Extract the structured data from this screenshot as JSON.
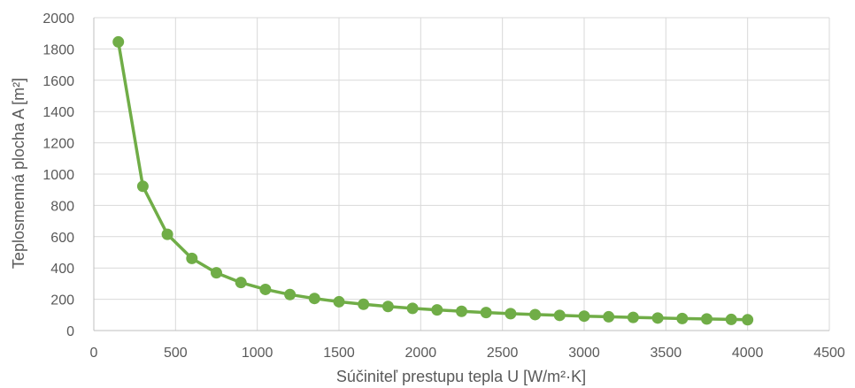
{
  "chart_data": {
    "type": "line",
    "title": "",
    "xlabel": "Súčiniteľ prestupu tepla U [W/m²·K]",
    "ylabel": "Teplosmenná plocha A [m²]",
    "xlim": [
      0,
      4500
    ],
    "ylim": [
      0,
      2000
    ],
    "xticks": [
      "0",
      "500",
      "1000",
      "1500",
      "2000",
      "2500",
      "3000",
      "3500",
      "4000",
      "4500"
    ],
    "yticks": [
      "0",
      "200",
      "400",
      "600",
      "800",
      "1000",
      "1200",
      "1400",
      "1600",
      "1800",
      "2000"
    ],
    "grid": true,
    "legend": "none",
    "color": "#70ad47",
    "series": [
      {
        "x": [
          150,
          300,
          450,
          600,
          750,
          900,
          1050,
          1200,
          1350,
          1500,
          1650,
          1800,
          1950,
          2100,
          2250,
          2400,
          2550,
          2700,
          2850,
          3000,
          3150,
          3300,
          3450,
          3600,
          3750,
          3900,
          4000
        ],
        "y": [
          1845,
          922,
          615,
          461,
          369,
          307,
          263,
          230,
          205,
          184,
          168,
          154,
          142,
          132,
          123,
          115,
          108,
          102,
          97,
          92,
          88,
          84,
          80,
          77,
          74,
          71,
          69
        ]
      }
    ]
  }
}
